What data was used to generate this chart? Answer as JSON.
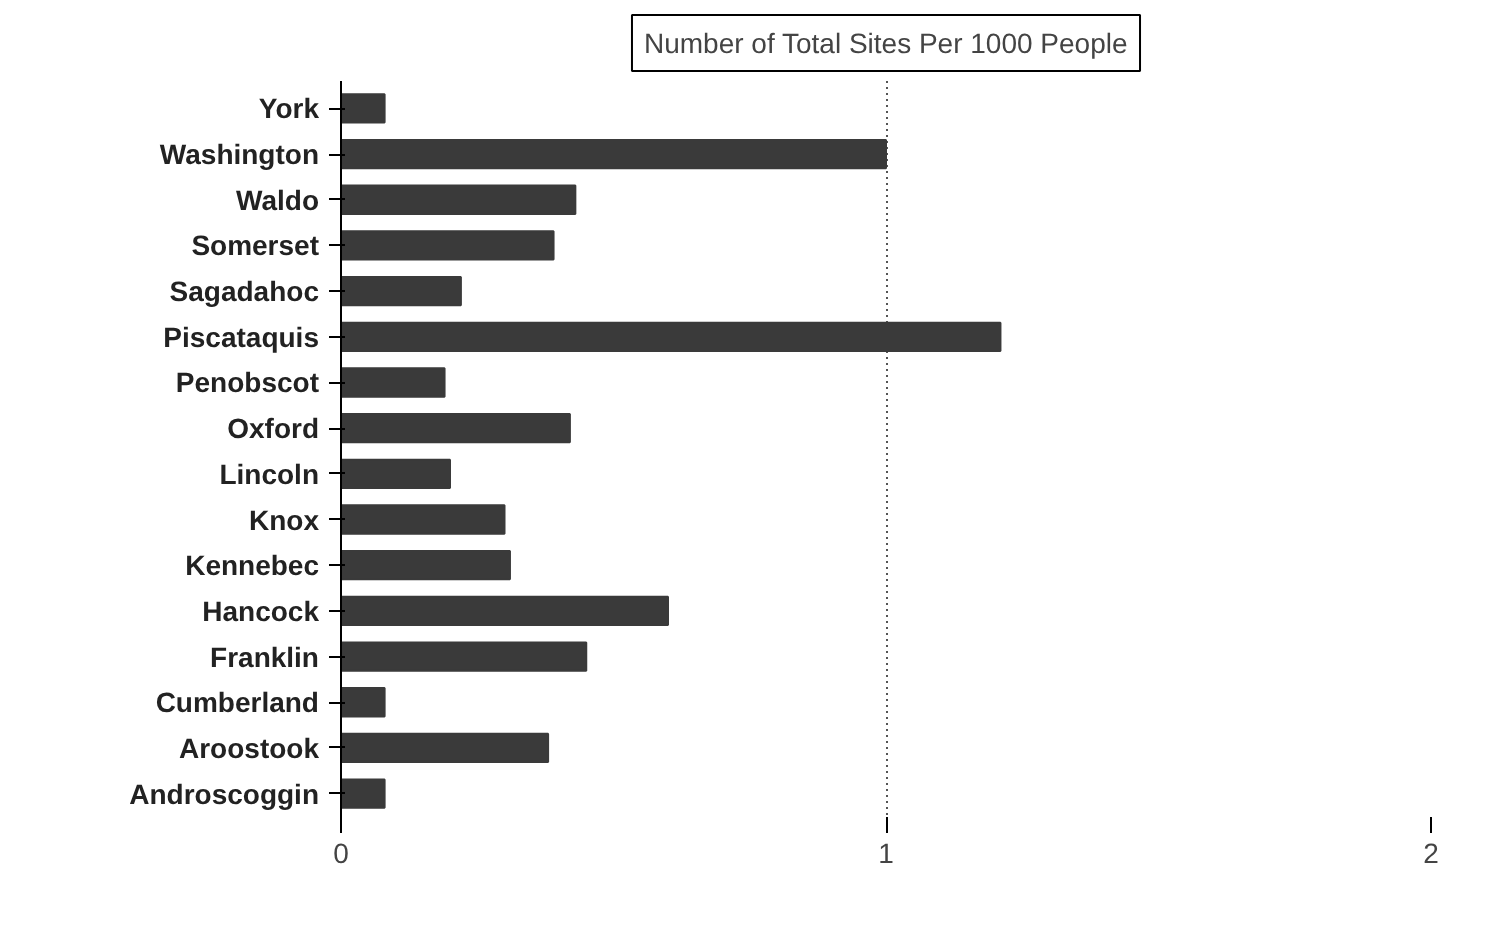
{
  "chart_data": {
    "type": "bar",
    "orientation": "horizontal",
    "title": "Number of Total Sites Per 1000 People",
    "categories": [
      "York",
      "Washington",
      "Waldo",
      "Somerset",
      "Sagadahoc",
      "Piscataquis",
      "Penobscot",
      "Oxford",
      "Lincoln",
      "Knox",
      "Kennebec",
      "Hancock",
      "Franklin",
      "Cumberland",
      "Aroostook",
      "Androscoggin"
    ],
    "values": [
      0.08,
      1.0,
      0.43,
      0.39,
      0.22,
      1.21,
      0.19,
      0.42,
      0.2,
      0.3,
      0.31,
      0.6,
      0.45,
      0.08,
      0.38,
      0.08
    ],
    "color": "#3a3a3a",
    "xlim": [
      0,
      2
    ],
    "xticks": [
      0,
      1,
      2
    ],
    "grid": "x"
  }
}
